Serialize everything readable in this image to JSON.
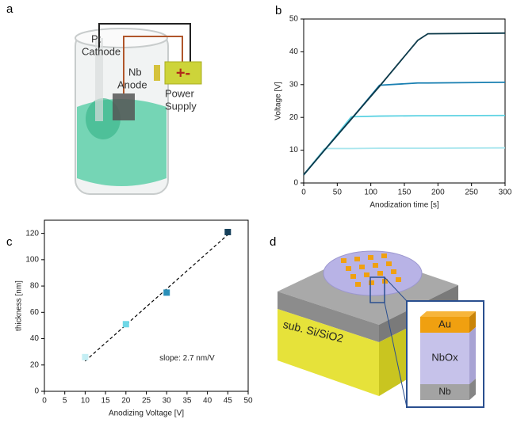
{
  "panel_labels": [
    "a",
    "b",
    "c",
    "d"
  ],
  "setup": {
    "cathode": [
      "Pt",
      "Cathode"
    ],
    "anode": [
      "Nb",
      "Anode"
    ],
    "supply_sign": "+-",
    "supply": [
      "Power",
      "Supply"
    ]
  },
  "chart_data": [
    {
      "type": "line",
      "x_label": "Anodization time [s]",
      "y_label": "Voltage [V]",
      "x": [
        0,
        31,
        71,
        113,
        170,
        185,
        300
      ],
      "series": [
        {
          "color": "#a9e6ee",
          "values": [
            2.5,
            10.5,
            10.5,
            10.6,
            10.6,
            10.6,
            10.7
          ]
        },
        {
          "color": "#5fd3e3",
          "values": [
            2.5,
            10,
            20.2,
            20.4,
            20.5,
            20.5,
            20.6
          ]
        },
        {
          "color": "#1a80b2",
          "values": [
            2.5,
            10,
            19.5,
            29.8,
            30.5,
            30.5,
            30.7
          ]
        },
        {
          "color": "#0d3a4a",
          "values": [
            2.5,
            10,
            19.5,
            29.5,
            43.5,
            45.5,
            45.7
          ]
        }
      ],
      "xlim": [
        0,
        300
      ],
      "xticks": [
        0,
        50,
        100,
        150,
        200,
        250,
        300
      ],
      "ylim": [
        0,
        50
      ],
      "yticks": [
        0,
        10,
        20,
        30,
        40,
        50
      ]
    },
    {
      "type": "scatter",
      "x_label": "Anodizing Voltage [V]",
      "y_label": "thickness [nm]",
      "x": [
        10,
        20,
        30,
        45
      ],
      "series": [
        {
          "colors": [
            "#c4eef4",
            "#6fd7e6",
            "#2a8fb8",
            "#16405a"
          ],
          "values": [
            26,
            51,
            75,
            121
          ]
        }
      ],
      "fit": {
        "x": [
          10,
          45
        ],
        "values": [
          23,
          119
        ]
      },
      "annotation": "slope: 2.7 nm/V",
      "xlim": [
        0,
        50
      ],
      "xticks": [
        0,
        5,
        10,
        15,
        20,
        25,
        30,
        35,
        40,
        45,
        50
      ],
      "ylim": [
        0,
        130
      ],
      "yticks": [
        0,
        20,
        40,
        60,
        80,
        100,
        120
      ]
    }
  ],
  "device": {
    "substrate": "sub. Si/SiO2",
    "layers": [
      "Au",
      "NbOx",
      "Nb"
    ]
  }
}
